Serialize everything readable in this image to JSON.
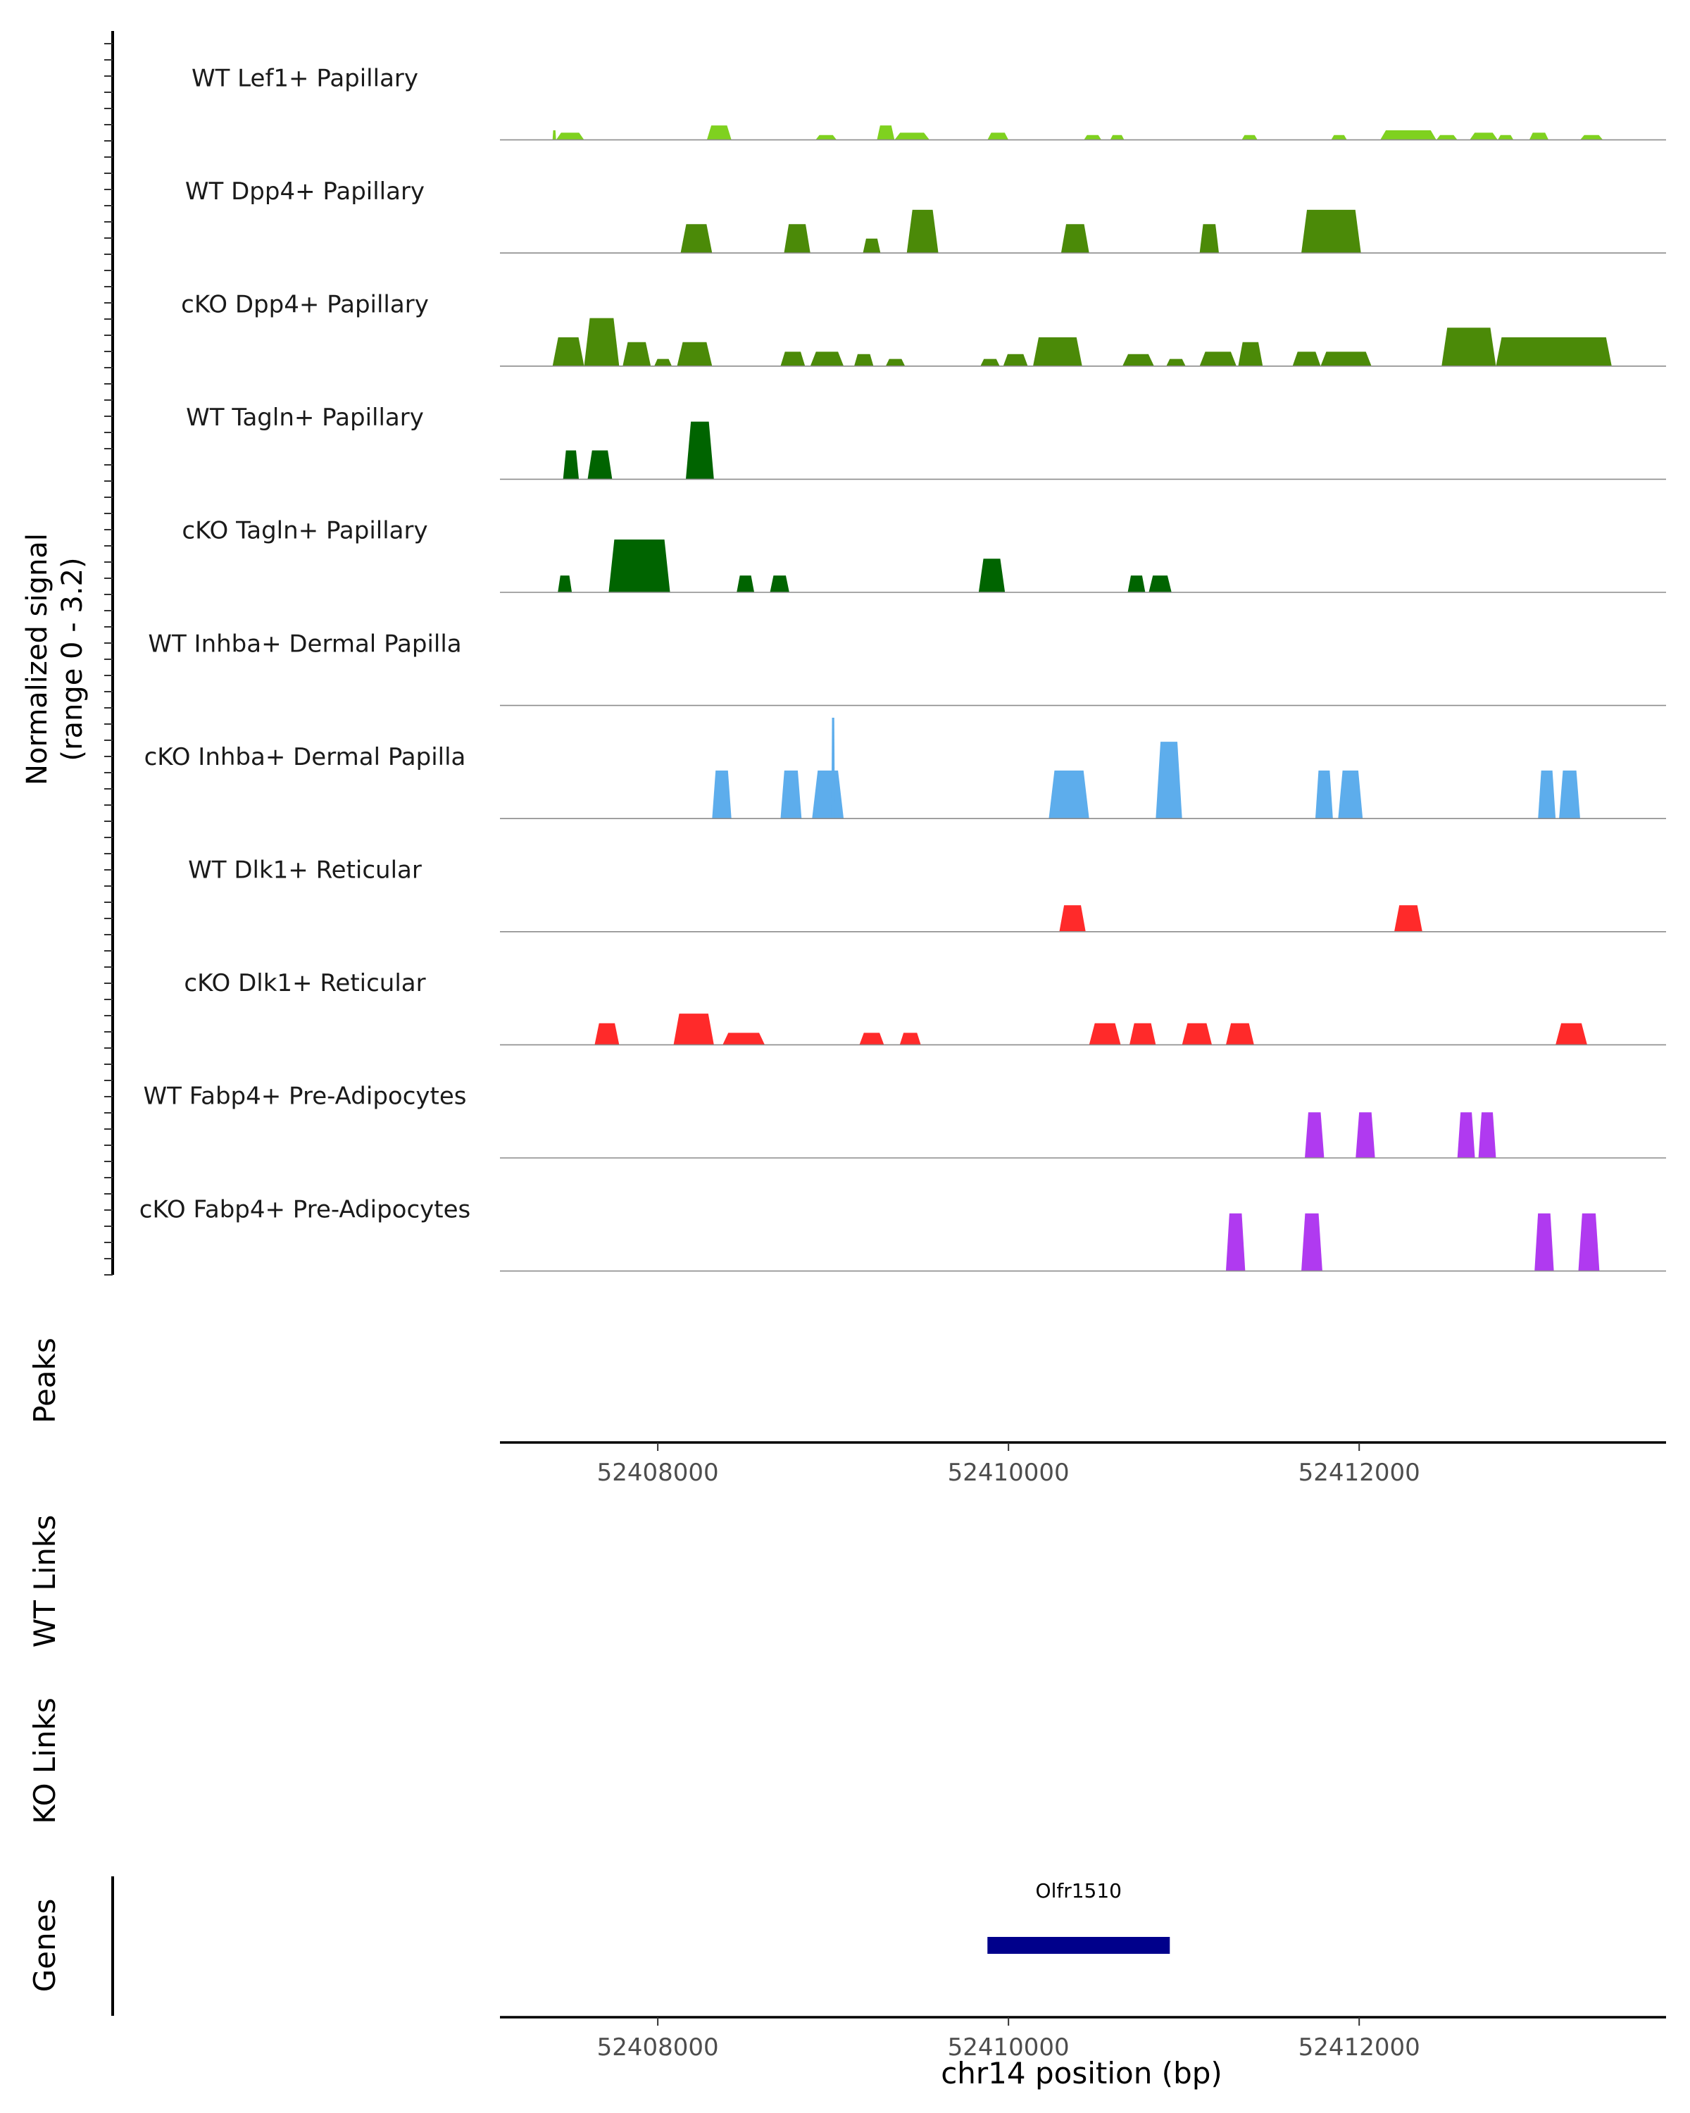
{
  "chart_data": {
    "type": "area",
    "title": "",
    "y_axis_title": "Normalized signal\n(range 0 - 3.2)",
    "y_range": [
      0,
      3.2
    ],
    "x_axis_title": "chr14 position (bp)",
    "x_range": [
      52407100,
      52413750
    ],
    "x_ticks": [
      52408000,
      52410000,
      52412000
    ],
    "x_tick_labels": [
      "52408000",
      "52410000",
      "52412000"
    ],
    "coverage_tracks": [
      {
        "name": "WT Lef1+ Papillary",
        "color": "#7FD11F",
        "peaks": [
          [
            52407400,
            52407420,
            0.4
          ],
          [
            52407420,
            52407580,
            0.3
          ],
          [
            52408280,
            52408420,
            0.6
          ],
          [
            52408900,
            52409020,
            0.2
          ],
          [
            52409250,
            52409350,
            0.6
          ],
          [
            52409350,
            52409550,
            0.3
          ],
          [
            52409880,
            52410000,
            0.3
          ],
          [
            52410430,
            52410530,
            0.2
          ],
          [
            52410580,
            52410660,
            0.2
          ],
          [
            52411330,
            52411420,
            0.2
          ],
          [
            52411840,
            52411930,
            0.2
          ],
          [
            52412120,
            52412440,
            0.4
          ],
          [
            52412440,
            52412560,
            0.2
          ],
          [
            52412630,
            52412790,
            0.3
          ],
          [
            52412790,
            52412880,
            0.2
          ],
          [
            52412970,
            52413080,
            0.3
          ],
          [
            52413260,
            52413390,
            0.2
          ]
        ]
      },
      {
        "name": "WT Dpp4+ Papillary",
        "color": "#4B8A08",
        "peaks": [
          [
            52408130,
            52408310,
            1.2
          ],
          [
            52408720,
            52408870,
            1.2
          ],
          [
            52409170,
            52409270,
            0.6
          ],
          [
            52409420,
            52409600,
            1.8
          ],
          [
            52410300,
            52410460,
            1.2
          ],
          [
            52411090,
            52411200,
            1.2
          ],
          [
            52411670,
            52412010,
            1.8
          ]
        ]
      },
      {
        "name": "cKO Dpp4+ Papillary",
        "color": "#4B8A08",
        "peaks": [
          [
            52407400,
            52407580,
            1.2
          ],
          [
            52407580,
            52407780,
            2.0
          ],
          [
            52407800,
            52407960,
            1.0
          ],
          [
            52407980,
            52408080,
            0.3
          ],
          [
            52408110,
            52408310,
            1.0
          ],
          [
            52408700,
            52408840,
            0.6
          ],
          [
            52408870,
            52409060,
            0.6
          ],
          [
            52409120,
            52409230,
            0.5
          ],
          [
            52409300,
            52409410,
            0.3
          ],
          [
            52409840,
            52409950,
            0.3
          ],
          [
            52409970,
            52410110,
            0.5
          ],
          [
            52410140,
            52410420,
            1.2
          ],
          [
            52410650,
            52410830,
            0.5
          ],
          [
            52410900,
            52411010,
            0.3
          ],
          [
            52411090,
            52411300,
            0.6
          ],
          [
            52411310,
            52411450,
            1.0
          ],
          [
            52411620,
            52411780,
            0.6
          ],
          [
            52411780,
            52412070,
            0.6
          ],
          [
            52412470,
            52412780,
            1.6
          ],
          [
            52412780,
            52413440,
            1.2
          ]
        ]
      },
      {
        "name": "WT Tagln+ Papillary",
        "color": "#006400",
        "peaks": [
          [
            52407460,
            52407550,
            1.2
          ],
          [
            52407600,
            52407740,
            1.2
          ],
          [
            52408160,
            52408320,
            2.4
          ]
        ]
      },
      {
        "name": "cKO Tagln+ Papillary",
        "color": "#006400",
        "peaks": [
          [
            52407430,
            52407510,
            0.7
          ],
          [
            52407720,
            52408070,
            2.2
          ],
          [
            52408450,
            52408550,
            0.7
          ],
          [
            52408640,
            52408750,
            0.7
          ],
          [
            52409830,
            52409980,
            1.4
          ],
          [
            52410680,
            52410780,
            0.7
          ],
          [
            52410800,
            52410930,
            0.7
          ]
        ]
      },
      {
        "name": "WT Inhba+ Dermal Papilla",
        "color": "#5DADEC",
        "peaks": []
      },
      {
        "name": "cKO Inhba+ Dermal Papilla",
        "color": "#5DADEC",
        "peaks": [
          [
            52408310,
            52408420,
            2.0
          ],
          [
            52408700,
            52408820,
            2.0
          ],
          [
            52408880,
            52409060,
            2.0
          ],
          [
            52408990,
            52409010,
            4.2
          ],
          [
            52410230,
            52410460,
            2.0
          ],
          [
            52410840,
            52410990,
            3.2
          ],
          [
            52411750,
            52411850,
            2.0
          ],
          [
            52411880,
            52412020,
            2.0
          ],
          [
            52413020,
            52413120,
            2.0
          ],
          [
            52413140,
            52413260,
            2.0
          ]
        ]
      },
      {
        "name": "WT Dlk1+ Reticular",
        "color": "#FF2A2A",
        "peaks": [
          [
            52410290,
            52410440,
            1.1
          ],
          [
            52412200,
            52412360,
            1.1
          ]
        ]
      },
      {
        "name": "cKO Dlk1+ Reticular",
        "color": "#FF2A2A",
        "peaks": [
          [
            52407640,
            52407780,
            0.9
          ],
          [
            52408090,
            52408320,
            1.3
          ],
          [
            52408370,
            52408610,
            0.5
          ],
          [
            52409150,
            52409290,
            0.5
          ],
          [
            52409380,
            52409500,
            0.5
          ],
          [
            52410460,
            52410640,
            0.9
          ],
          [
            52410690,
            52410840,
            0.9
          ],
          [
            52410990,
            52411160,
            0.9
          ],
          [
            52411240,
            52411400,
            0.9
          ],
          [
            52413120,
            52413300,
            0.9
          ]
        ]
      },
      {
        "name": "WT Fabp4+ Pre-Adipocytes",
        "color": "#B03AF0",
        "peaks": [
          [
            52411690,
            52411800,
            1.9
          ],
          [
            52411980,
            52412090,
            1.9
          ],
          [
            52412560,
            52412660,
            1.9
          ],
          [
            52412680,
            52412780,
            1.9
          ]
        ]
      },
      {
        "name": "cKO Fabp4+ Pre-Adipocytes",
        "color": "#B03AF0",
        "peaks": [
          [
            52411240,
            52411350,
            2.4
          ],
          [
            52411670,
            52411790,
            2.4
          ],
          [
            52413000,
            52413110,
            2.4
          ],
          [
            52413250,
            52413370,
            2.4
          ]
        ]
      }
    ],
    "annotation_track_labels": [
      "Peaks",
      "WT Links",
      "KO Links",
      "Genes"
    ],
    "genes": [
      {
        "name": "Olfr1510",
        "start": 52409880,
        "end": 52410920,
        "color": "#00008B"
      }
    ]
  }
}
